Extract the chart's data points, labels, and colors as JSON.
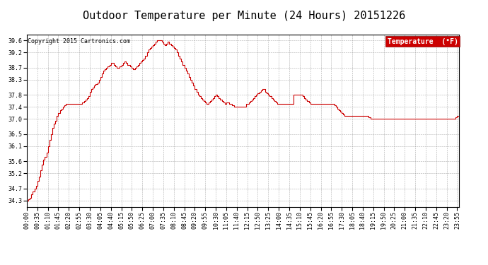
{
  "title": "Outdoor Temperature per Minute (24 Hours) 20151226",
  "copyright": "Copyright 2015 Cartronics.com",
  "legend_label": "Temperature  (°F)",
  "legend_bg": "#cc0000",
  "legend_text_color": "#ffffff",
  "line_color": "#cc0000",
  "background_color": "#ffffff",
  "grid_color": "#999999",
  "ylim": [
    34.1,
    39.8
  ],
  "yticks": [
    34.3,
    34.7,
    35.2,
    35.6,
    36.1,
    36.5,
    37.0,
    37.4,
    37.8,
    38.3,
    38.7,
    39.2,
    39.6
  ],
  "title_fontsize": 11,
  "tick_label_fontsize": 6,
  "copyright_fontsize": 6,
  "legend_fontsize": 7,
  "data_points": [
    [
      0,
      34.3
    ],
    [
      5,
      34.35
    ],
    [
      10,
      34.4
    ],
    [
      15,
      34.5
    ],
    [
      20,
      34.6
    ],
    [
      25,
      34.7
    ],
    [
      30,
      34.8
    ],
    [
      35,
      34.95
    ],
    [
      40,
      35.1
    ],
    [
      45,
      35.3
    ],
    [
      50,
      35.5
    ],
    [
      55,
      35.65
    ],
    [
      60,
      35.75
    ],
    [
      65,
      35.9
    ],
    [
      70,
      36.1
    ],
    [
      75,
      36.3
    ],
    [
      80,
      36.5
    ],
    [
      85,
      36.7
    ],
    [
      90,
      36.85
    ],
    [
      95,
      36.95
    ],
    [
      100,
      37.1
    ],
    [
      105,
      37.2
    ],
    [
      110,
      37.3
    ],
    [
      115,
      37.35
    ],
    [
      120,
      37.4
    ],
    [
      125,
      37.45
    ],
    [
      130,
      37.5
    ],
    [
      135,
      37.5
    ],
    [
      140,
      37.5
    ],
    [
      145,
      37.5
    ],
    [
      150,
      37.5
    ],
    [
      155,
      37.5
    ],
    [
      160,
      37.5
    ],
    [
      165,
      37.5
    ],
    [
      170,
      37.5
    ],
    [
      175,
      37.5
    ],
    [
      180,
      37.5
    ],
    [
      185,
      37.55
    ],
    [
      190,
      37.6
    ],
    [
      195,
      37.65
    ],
    [
      200,
      37.7
    ],
    [
      205,
      37.75
    ],
    [
      210,
      37.9
    ],
    [
      215,
      38.0
    ],
    [
      220,
      38.05
    ],
    [
      225,
      38.1
    ],
    [
      230,
      38.15
    ],
    [
      235,
      38.2
    ],
    [
      240,
      38.3
    ],
    [
      245,
      38.4
    ],
    [
      250,
      38.5
    ],
    [
      255,
      38.6
    ],
    [
      260,
      38.65
    ],
    [
      265,
      38.7
    ],
    [
      270,
      38.75
    ],
    [
      275,
      38.8
    ],
    [
      280,
      38.85
    ],
    [
      285,
      38.85
    ],
    [
      290,
      38.8
    ],
    [
      295,
      38.75
    ],
    [
      300,
      38.7
    ],
    [
      305,
      38.7
    ],
    [
      310,
      38.75
    ],
    [
      315,
      38.8
    ],
    [
      320,
      38.85
    ],
    [
      325,
      38.9
    ],
    [
      330,
      38.85
    ],
    [
      335,
      38.8
    ],
    [
      340,
      38.8
    ],
    [
      345,
      38.75
    ],
    [
      350,
      38.7
    ],
    [
      355,
      38.65
    ],
    [
      360,
      38.7
    ],
    [
      365,
      38.75
    ],
    [
      370,
      38.8
    ],
    [
      375,
      38.85
    ],
    [
      380,
      38.9
    ],
    [
      385,
      38.95
    ],
    [
      390,
      39.0
    ],
    [
      395,
      39.1
    ],
    [
      400,
      39.2
    ],
    [
      405,
      39.3
    ],
    [
      410,
      39.35
    ],
    [
      415,
      39.4
    ],
    [
      420,
      39.45
    ],
    [
      425,
      39.5
    ],
    [
      430,
      39.55
    ],
    [
      435,
      39.6
    ],
    [
      440,
      39.6
    ],
    [
      445,
      39.6
    ],
    [
      450,
      39.55
    ],
    [
      455,
      39.5
    ],
    [
      460,
      39.45
    ],
    [
      465,
      39.5
    ],
    [
      470,
      39.55
    ],
    [
      475,
      39.5
    ],
    [
      480,
      39.45
    ],
    [
      485,
      39.4
    ],
    [
      490,
      39.35
    ],
    [
      495,
      39.3
    ],
    [
      500,
      39.2
    ],
    [
      505,
      39.1
    ],
    [
      510,
      39.0
    ],
    [
      515,
      38.9
    ],
    [
      520,
      38.8
    ],
    [
      525,
      38.7
    ],
    [
      530,
      38.6
    ],
    [
      535,
      38.5
    ],
    [
      540,
      38.4
    ],
    [
      545,
      38.3
    ],
    [
      550,
      38.2
    ],
    [
      555,
      38.1
    ],
    [
      560,
      38.0
    ],
    [
      565,
      37.9
    ],
    [
      570,
      37.8
    ],
    [
      575,
      37.75
    ],
    [
      580,
      37.7
    ],
    [
      585,
      37.65
    ],
    [
      590,
      37.6
    ],
    [
      595,
      37.55
    ],
    [
      600,
      37.5
    ],
    [
      605,
      37.55
    ],
    [
      610,
      37.6
    ],
    [
      615,
      37.65
    ],
    [
      620,
      37.7
    ],
    [
      625,
      37.75
    ],
    [
      630,
      37.8
    ],
    [
      635,
      37.75
    ],
    [
      640,
      37.7
    ],
    [
      645,
      37.65
    ],
    [
      650,
      37.6
    ],
    [
      655,
      37.55
    ],
    [
      660,
      37.5
    ],
    [
      665,
      37.55
    ],
    [
      670,
      37.55
    ],
    [
      675,
      37.5
    ],
    [
      680,
      37.5
    ],
    [
      685,
      37.45
    ],
    [
      690,
      37.4
    ],
    [
      695,
      37.4
    ],
    [
      700,
      37.4
    ],
    [
      705,
      37.4
    ],
    [
      710,
      37.4
    ],
    [
      715,
      37.4
    ],
    [
      720,
      37.4
    ],
    [
      725,
      37.4
    ],
    [
      730,
      37.5
    ],
    [
      735,
      37.5
    ],
    [
      740,
      37.55
    ],
    [
      745,
      37.6
    ],
    [
      750,
      37.65
    ],
    [
      755,
      37.7
    ],
    [
      760,
      37.75
    ],
    [
      765,
      37.8
    ],
    [
      770,
      37.85
    ],
    [
      775,
      37.9
    ],
    [
      780,
      37.95
    ],
    [
      785,
      38.0
    ],
    [
      790,
      38.0
    ],
    [
      795,
      37.9
    ],
    [
      800,
      37.85
    ],
    [
      805,
      37.8
    ],
    [
      810,
      37.75
    ],
    [
      815,
      37.7
    ],
    [
      820,
      37.65
    ],
    [
      825,
      37.6
    ],
    [
      830,
      37.55
    ],
    [
      835,
      37.5
    ],
    [
      840,
      37.5
    ],
    [
      845,
      37.5
    ],
    [
      850,
      37.5
    ],
    [
      855,
      37.5
    ],
    [
      860,
      37.5
    ],
    [
      865,
      37.5
    ],
    [
      870,
      37.5
    ],
    [
      875,
      37.5
    ],
    [
      880,
      37.5
    ],
    [
      885,
      37.5
    ],
    [
      890,
      37.8
    ],
    [
      895,
      37.8
    ],
    [
      900,
      37.8
    ],
    [
      905,
      37.8
    ],
    [
      910,
      37.8
    ],
    [
      915,
      37.8
    ],
    [
      920,
      37.75
    ],
    [
      925,
      37.7
    ],
    [
      930,
      37.65
    ],
    [
      935,
      37.6
    ],
    [
      940,
      37.55
    ],
    [
      945,
      37.5
    ],
    [
      950,
      37.5
    ],
    [
      955,
      37.5
    ],
    [
      960,
      37.5
    ],
    [
      965,
      37.5
    ],
    [
      970,
      37.5
    ],
    [
      975,
      37.5
    ],
    [
      980,
      37.5
    ],
    [
      985,
      37.5
    ],
    [
      990,
      37.5
    ],
    [
      995,
      37.5
    ],
    [
      1000,
      37.5
    ],
    [
      1005,
      37.5
    ],
    [
      1010,
      37.5
    ],
    [
      1015,
      37.5
    ],
    [
      1020,
      37.5
    ],
    [
      1025,
      37.45
    ],
    [
      1030,
      37.4
    ],
    [
      1035,
      37.35
    ],
    [
      1040,
      37.3
    ],
    [
      1045,
      37.25
    ],
    [
      1050,
      37.2
    ],
    [
      1055,
      37.15
    ],
    [
      1060,
      37.1
    ],
    [
      1065,
      37.1
    ],
    [
      1070,
      37.1
    ],
    [
      1075,
      37.1
    ],
    [
      1080,
      37.1
    ],
    [
      1085,
      37.1
    ],
    [
      1090,
      37.1
    ],
    [
      1095,
      37.1
    ],
    [
      1100,
      37.1
    ],
    [
      1105,
      37.1
    ],
    [
      1110,
      37.1
    ],
    [
      1115,
      37.1
    ],
    [
      1120,
      37.1
    ],
    [
      1125,
      37.1
    ],
    [
      1130,
      37.1
    ],
    [
      1135,
      37.1
    ],
    [
      1140,
      37.05
    ],
    [
      1145,
      37.0
    ],
    [
      1150,
      37.0
    ],
    [
      1155,
      37.0
    ],
    [
      1160,
      37.0
    ],
    [
      1165,
      37.0
    ],
    [
      1170,
      37.0
    ],
    [
      1175,
      37.0
    ],
    [
      1180,
      37.0
    ],
    [
      1185,
      37.0
    ],
    [
      1190,
      37.0
    ],
    [
      1195,
      37.0
    ],
    [
      1200,
      37.0
    ],
    [
      1205,
      37.0
    ],
    [
      1210,
      37.0
    ],
    [
      1215,
      37.0
    ],
    [
      1220,
      37.0
    ],
    [
      1225,
      37.0
    ],
    [
      1230,
      37.0
    ],
    [
      1235,
      37.0
    ],
    [
      1240,
      37.0
    ],
    [
      1245,
      37.0
    ],
    [
      1250,
      37.0
    ],
    [
      1255,
      37.0
    ],
    [
      1260,
      37.0
    ],
    [
      1265,
      37.0
    ],
    [
      1270,
      37.0
    ],
    [
      1275,
      37.0
    ],
    [
      1280,
      37.0
    ],
    [
      1285,
      37.0
    ],
    [
      1290,
      37.0
    ],
    [
      1295,
      37.0
    ],
    [
      1300,
      37.0
    ],
    [
      1305,
      37.0
    ],
    [
      1310,
      37.0
    ],
    [
      1315,
      37.0
    ],
    [
      1320,
      37.0
    ],
    [
      1325,
      37.0
    ],
    [
      1330,
      37.0
    ],
    [
      1335,
      37.0
    ],
    [
      1340,
      37.0
    ],
    [
      1345,
      37.0
    ],
    [
      1350,
      37.0
    ],
    [
      1355,
      37.0
    ],
    [
      1360,
      37.0
    ],
    [
      1365,
      37.0
    ],
    [
      1370,
      37.0
    ],
    [
      1375,
      37.0
    ],
    [
      1380,
      37.0
    ],
    [
      1385,
      37.0
    ],
    [
      1390,
      37.0
    ],
    [
      1395,
      37.0
    ],
    [
      1400,
      37.0
    ],
    [
      1405,
      37.0
    ],
    [
      1410,
      37.0
    ],
    [
      1415,
      37.0
    ],
    [
      1420,
      37.0
    ],
    [
      1425,
      37.0
    ],
    [
      1430,
      37.05
    ],
    [
      1435,
      37.1
    ],
    [
      1440,
      37.0
    ]
  ],
  "xtick_positions": [
    0,
    35,
    70,
    105,
    140,
    175,
    210,
    245,
    280,
    315,
    350,
    385,
    420,
    455,
    490,
    525,
    560,
    595,
    630,
    665,
    700,
    735,
    770,
    805,
    840,
    875,
    910,
    945,
    980,
    1015,
    1050,
    1085,
    1120,
    1155,
    1190,
    1225,
    1260,
    1295,
    1330,
    1365,
    1400,
    1435
  ],
  "xtick_labels": [
    "00:00",
    "00:35",
    "01:10",
    "01:45",
    "02:20",
    "02:55",
    "03:30",
    "04:05",
    "04:40",
    "05:15",
    "05:50",
    "06:25",
    "07:00",
    "07:35",
    "08:10",
    "08:45",
    "09:20",
    "09:55",
    "10:30",
    "11:05",
    "11:40",
    "12:15",
    "12:50",
    "13:25",
    "14:00",
    "14:35",
    "15:10",
    "15:45",
    "16:20",
    "16:55",
    "17:30",
    "18:05",
    "18:40",
    "19:15",
    "19:50",
    "20:25",
    "21:00",
    "21:35",
    "22:10",
    "22:45",
    "23:20",
    "23:55"
  ]
}
